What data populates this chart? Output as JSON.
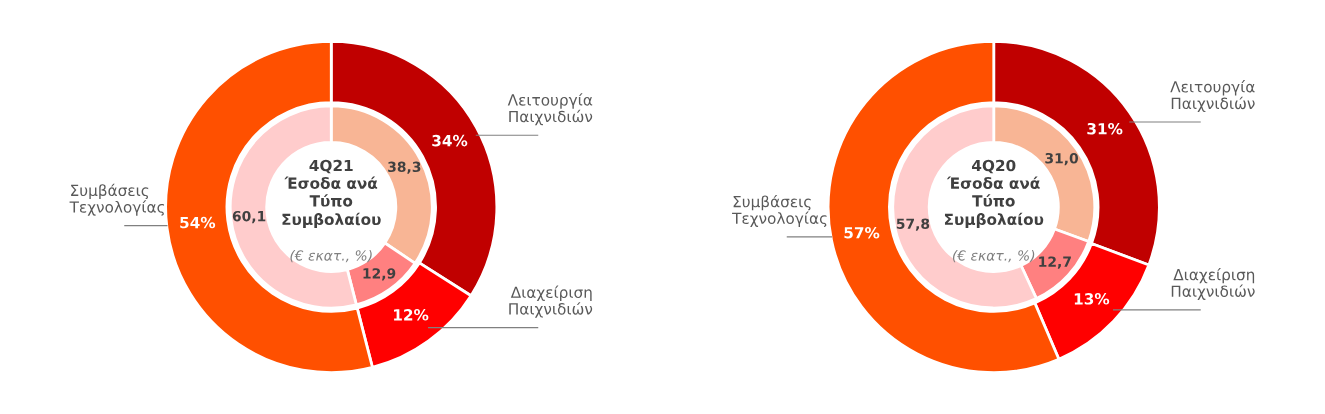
{
  "chart_data": [
    {
      "type": "donut",
      "title": "4Q21\nΈσοδα ανά\nΤύπο\nΣυμβολαίου",
      "subtitle": "(€ εκατ., %)",
      "categories": [
        "Λειτουργία Παιχνιδιών",
        "Διαχείριση Παιχνιδιών",
        "Συμβάσεις Τεχνολογίας"
      ],
      "series": [
        {
          "values": [
            34,
            12,
            54
          ],
          "colors": [
            "#c00000",
            "#ff0000",
            "#ff5000"
          ],
          "value_labels": [
            "34%",
            "12%",
            "54%"
          ]
        },
        {
          "values": [
            38.3,
            12.9,
            60.1
          ],
          "colors": [
            "#f8b595",
            "#ff8080",
            "#ffcccc"
          ],
          "value_labels": [
            "38,3",
            "12,9",
            "60,1"
          ]
        }
      ]
    },
    {
      "type": "donut",
      "title": "4Q20\nΈσοδα ανά\nΤύπο\nΣυμβολαίου",
      "subtitle": "(€ εκατ., %)",
      "categories": [
        "Λειτουργία Παιχνιδιών",
        "Διαχείριση Παιχνιδιών",
        "Συμβάσεις Τεχνολογίας"
      ],
      "series": [
        {
          "values": [
            31,
            13,
            57
          ],
          "colors": [
            "#c00000",
            "#ff0000",
            "#ff5000"
          ],
          "value_labels": [
            "31%",
            "13%",
            "57%"
          ]
        },
        {
          "values": [
            31.0,
            12.7,
            57.8
          ],
          "colors": [
            "#f8b595",
            "#ff8080",
            "#ffcccc"
          ],
          "value_labels": [
            "31,0",
            "12,7",
            "57,8"
          ]
        }
      ]
    }
  ]
}
